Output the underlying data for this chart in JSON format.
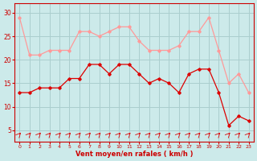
{
  "x": [
    0,
    1,
    2,
    3,
    4,
    5,
    6,
    7,
    8,
    9,
    10,
    11,
    12,
    13,
    14,
    15,
    16,
    17,
    18,
    19,
    20,
    21,
    22,
    23
  ],
  "wind_avg": [
    13,
    13,
    14,
    14,
    14,
    16,
    16,
    19,
    19,
    17,
    19,
    19,
    17,
    15,
    16,
    15,
    13,
    17,
    18,
    18,
    13,
    6,
    8,
    7
  ],
  "wind_gust": [
    29,
    21,
    21,
    22,
    22,
    22,
    26,
    26,
    25,
    26,
    27,
    27,
    24,
    22,
    22,
    22,
    23,
    26,
    26,
    29,
    22,
    15,
    17,
    13
  ],
  "bg_color": "#cceaea",
  "grid_color": "#aacece",
  "line_avg_color": "#dd0000",
  "line_gust_color": "#ff9999",
  "xlabel": "Vent moyen/en rafales ( km/h )",
  "xlabel_color": "#cc0000",
  "tick_color": "#cc0000",
  "yticks": [
    5,
    10,
    15,
    20,
    25,
    30
  ],
  "ylim": [
    2.5,
    32
  ],
  "xlim": [
    -0.5,
    23.5
  ]
}
